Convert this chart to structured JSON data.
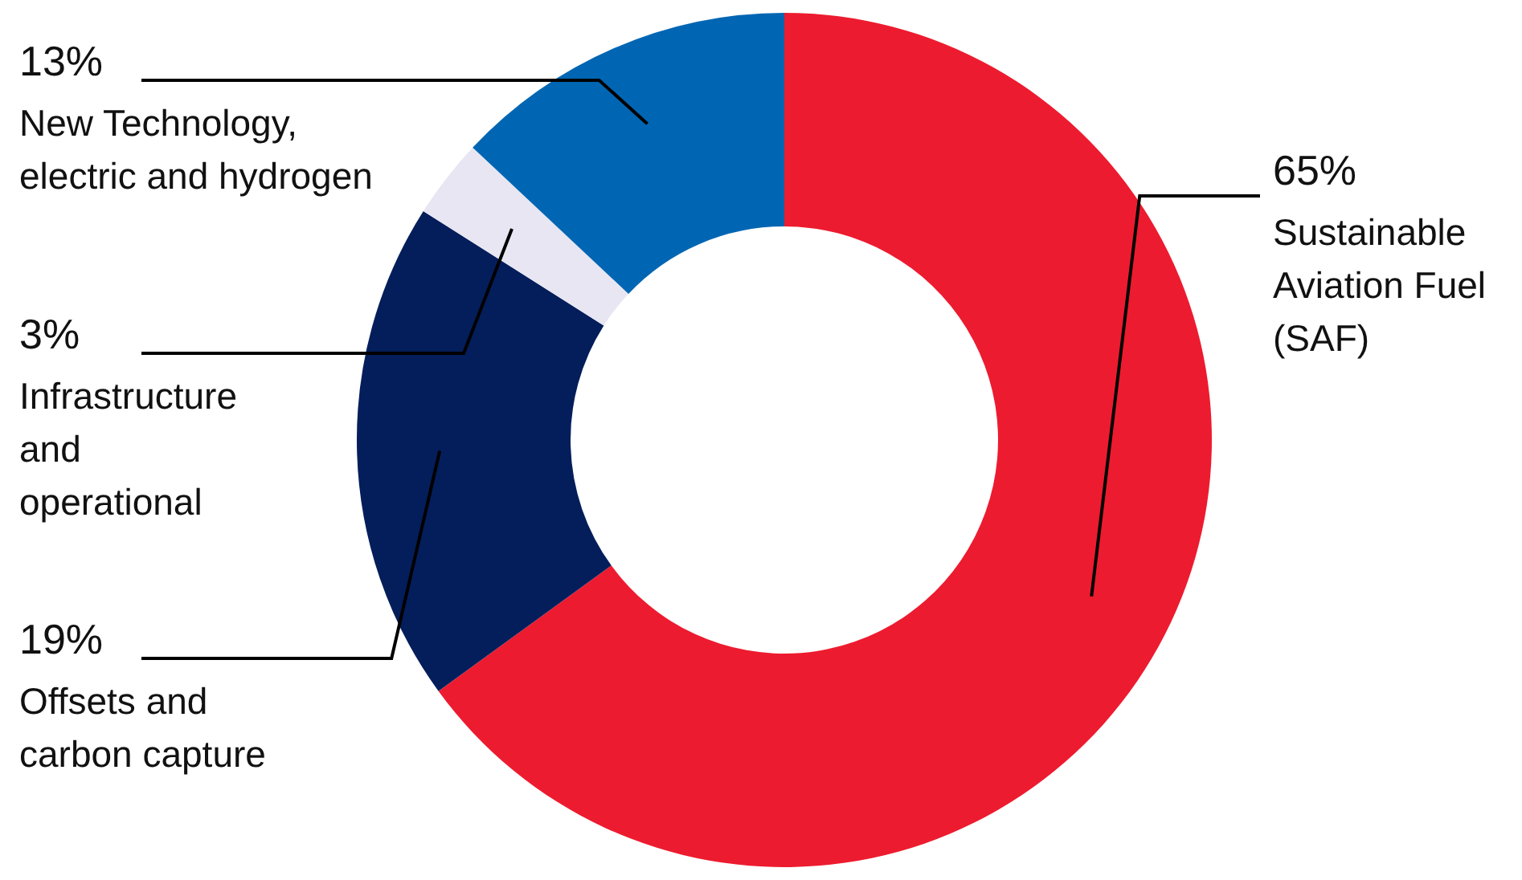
{
  "chart_data": {
    "type": "donut",
    "categories": [
      "Sustainable\nAviation Fuel\n(SAF)",
      "Offsets and\ncarbon capture",
      "Infrastructure\nand\noperational",
      "New Technology,\nelectric and hydrogen"
    ],
    "values": [
      65,
      19,
      3,
      13
    ],
    "value_labels": [
      "65%",
      "19%",
      "3%",
      "13%"
    ],
    "colors": [
      "#ed1b2f",
      "#041e5b",
      "#e8e6f2",
      "#0066b3"
    ],
    "legend": false
  }
}
